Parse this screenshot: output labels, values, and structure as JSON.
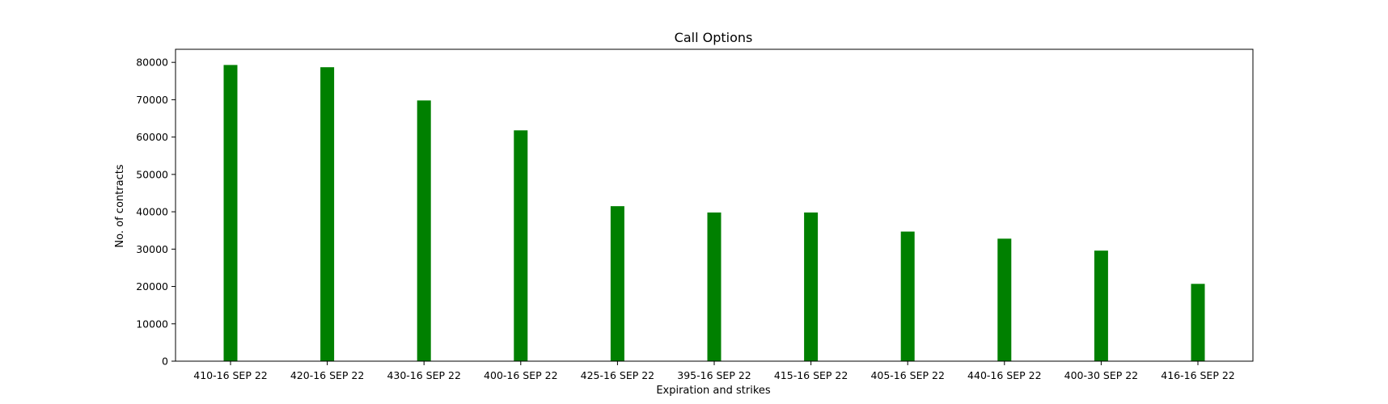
{
  "chart_data": {
    "type": "bar",
    "title": "Call Options",
    "xlabel": "Expiration and strikes",
    "ylabel": "No. of contracts",
    "categories": [
      "410-16 SEP 22",
      "420-16 SEP 22",
      "430-16 SEP 22",
      "400-16 SEP 22",
      "425-16 SEP 22",
      "395-16 SEP 22",
      "415-16 SEP 22",
      "405-16 SEP 22",
      "440-16 SEP 22",
      "400-30 SEP 22",
      "416-16 SEP 22"
    ],
    "values": [
      79300,
      78700,
      69800,
      61800,
      41500,
      39800,
      39800,
      34700,
      32800,
      29600,
      20700
    ],
    "ylim": [
      0,
      83500
    ],
    "yticks": [
      0,
      10000,
      20000,
      30000,
      40000,
      50000,
      60000,
      70000,
      80000
    ],
    "bar_color": "#008000",
    "grid": false,
    "legend": "none"
  }
}
